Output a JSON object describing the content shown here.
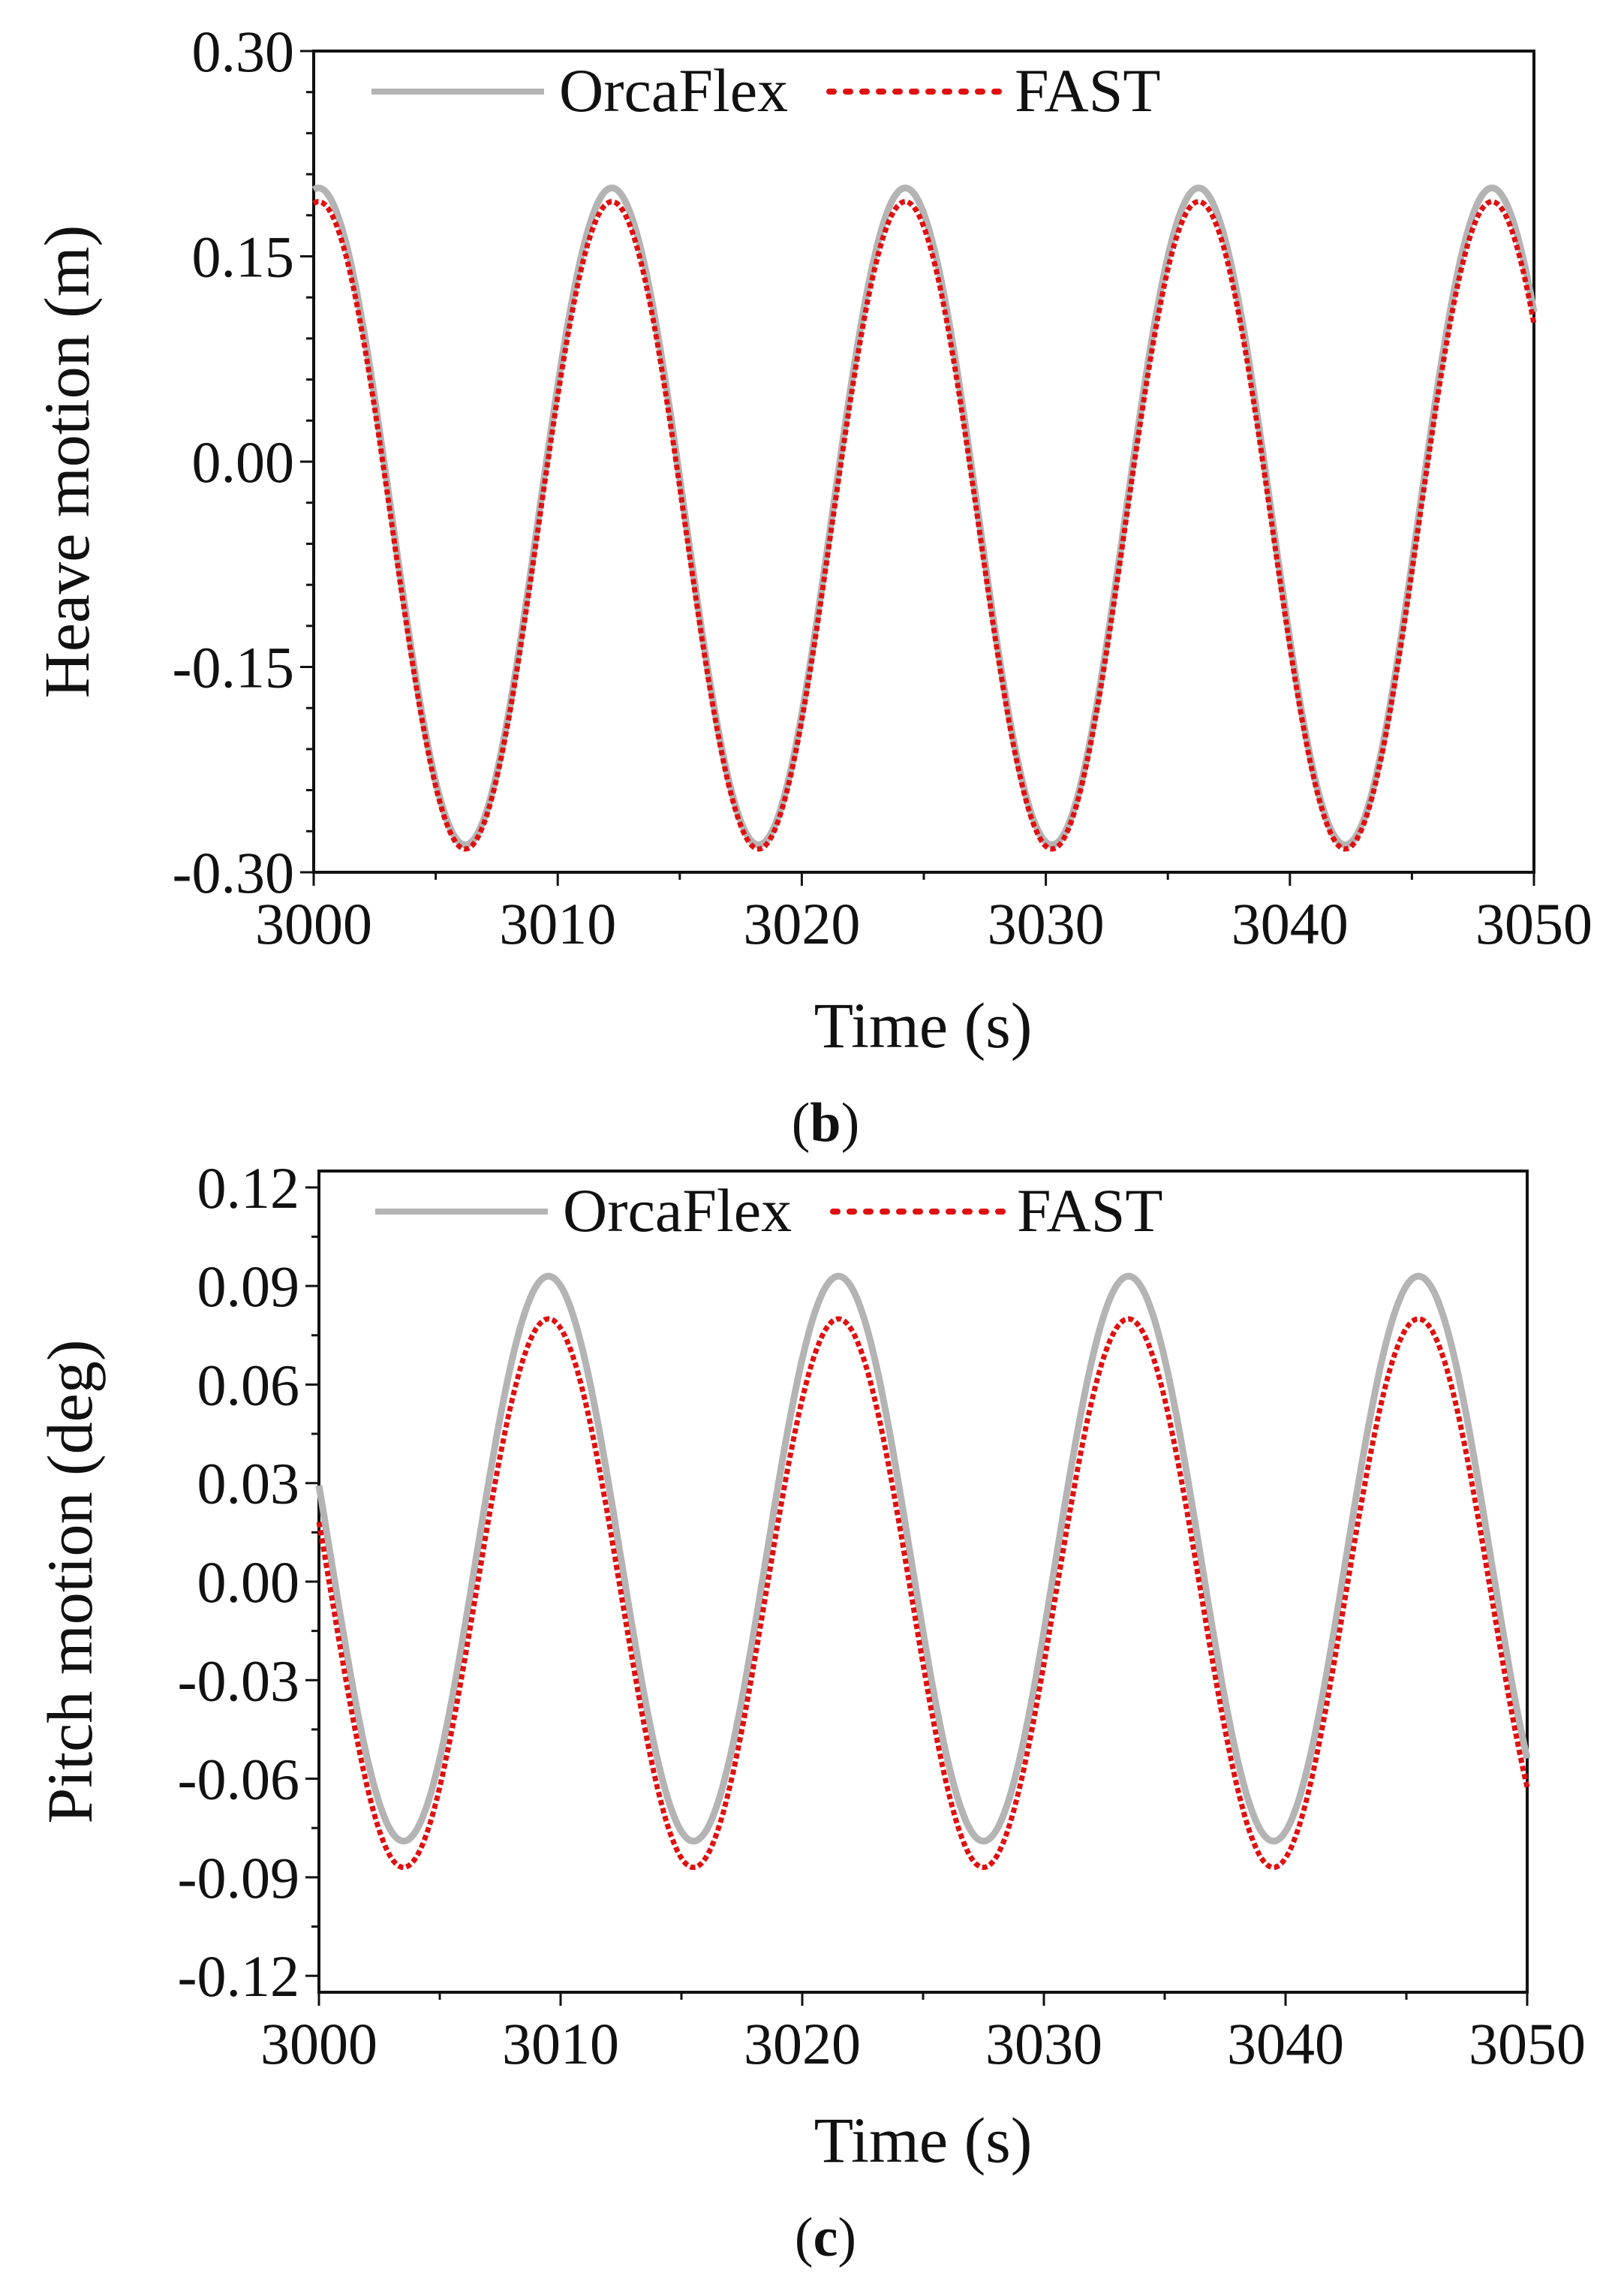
{
  "chart_data": [
    {
      "type": "line",
      "panel": "b",
      "xlabel": "Time (s)",
      "ylabel": "Heave motion (m)",
      "xlim": [
        3000,
        3050
      ],
      "ylim": [
        -0.3,
        0.3
      ],
      "xticks": [
        "3000",
        "3010",
        "3020",
        "3030",
        "3040",
        "3050"
      ],
      "yticks": [
        "0.30",
        "0.15",
        "0.00",
        "-0.15",
        "-0.30"
      ],
      "legend": [
        "OrcaFlex",
        "FAST"
      ],
      "series": [
        {
          "name": "OrcaFlex",
          "color": "#b4b4b4",
          "style": "solid",
          "period": 12.02,
          "peak_time": 3000.2,
          "max": 0.2,
          "min": -0.28
        },
        {
          "name": "FAST",
          "color": "#e01010",
          "style": "dotted",
          "period": 12.02,
          "peak_time": 3000.2,
          "max": 0.19,
          "min": -0.283
        }
      ]
    },
    {
      "type": "line",
      "panel": "c",
      "xlabel": "Time (s)",
      "ylabel": "Pitch motion (deg)",
      "xlim": [
        3000,
        3050
      ],
      "ylim": [
        -0.125,
        0.125
      ],
      "xticks": [
        "3000",
        "3010",
        "3020",
        "3030",
        "3040",
        "3050"
      ],
      "yticks": [
        "0.12",
        "0.09",
        "0.06",
        "0.03",
        "0.00",
        "-0.03",
        "-0.06",
        "-0.09",
        "-0.12"
      ],
      "legend": [
        "OrcaFlex",
        "FAST"
      ],
      "series": [
        {
          "name": "OrcaFlex",
          "color": "#b4b4b4",
          "style": "solid",
          "period": 12.0,
          "peak_time": 3009.5,
          "max": 0.093,
          "min": -0.079
        },
        {
          "name": "FAST",
          "color": "#e01010",
          "style": "dotted",
          "period": 12.0,
          "peak_time": 3009.5,
          "max": 0.08,
          "min": -0.087
        }
      ]
    }
  ],
  "captions": {
    "b_open": "(",
    "b_letter": "b",
    "b_close": ")",
    "c_open": "(",
    "c_letter": "c",
    "c_close": ")"
  }
}
